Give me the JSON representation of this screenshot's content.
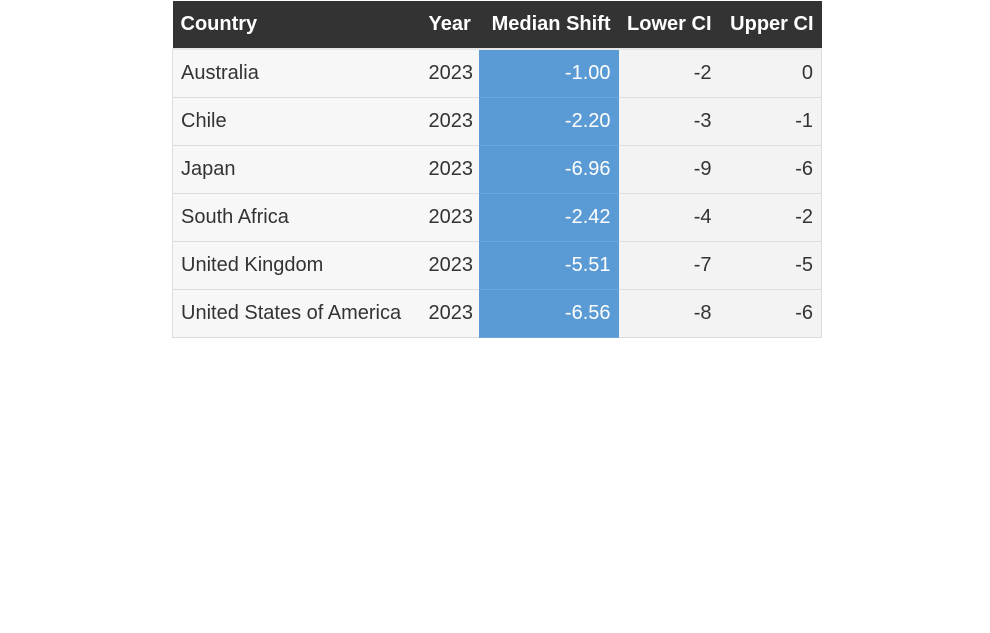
{
  "chart_data": {
    "type": "table",
    "columns": [
      "Country",
      "Year",
      "Median Shift",
      "Lower CI",
      "Upper CI"
    ],
    "rows": [
      [
        "Australia",
        "2023",
        "-1.00",
        "-2",
        "0"
      ],
      [
        "Chile",
        "2023",
        "-2.20",
        "-3",
        "-1"
      ],
      [
        "Japan",
        "2023",
        "-6.96",
        "-9",
        "-6"
      ],
      [
        "South Africa",
        "2023",
        "-2.42",
        "-4",
        "-2"
      ],
      [
        "United Kingdom",
        "2023",
        "-5.51",
        "-7",
        "-5"
      ],
      [
        "United States of America",
        "2023",
        "-6.56",
        "-8",
        "-6"
      ]
    ],
    "highlight_column": "Median Shift",
    "highlight_color": "#5b9bd5",
    "header_color": "#333333"
  }
}
